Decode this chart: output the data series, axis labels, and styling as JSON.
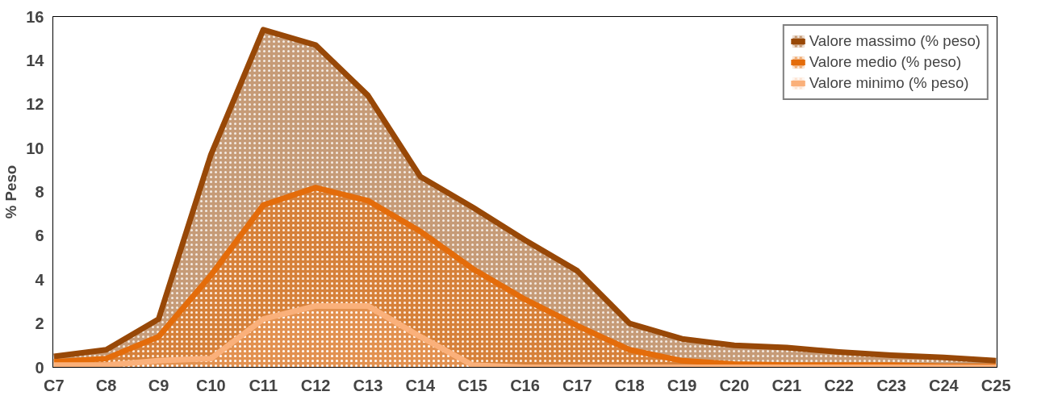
{
  "chart_data": {
    "type": "area",
    "ylabel": "% Peso",
    "categories": [
      "C7",
      "C8",
      "C9",
      "C10",
      "C11",
      "C12",
      "C13",
      "C14",
      "C15",
      "C16",
      "C17",
      "C18",
      "C19",
      "C20",
      "C21",
      "C22",
      "C23",
      "C24",
      "C25"
    ],
    "series": [
      {
        "name": "Valore massimo (% peso)",
        "color": "#984807",
        "values": [
          0.5,
          0.8,
          2.2,
          9.7,
          15.4,
          14.7,
          12.4,
          8.7,
          7.3,
          5.8,
          4.4,
          2.0,
          1.3,
          1.0,
          0.9,
          0.7,
          0.55,
          0.45,
          0.3
        ]
      },
      {
        "name": "Valore medio (% peso)",
        "color": "#e46c0a",
        "values": [
          0.25,
          0.4,
          1.4,
          4.2,
          7.4,
          8.2,
          7.6,
          6.2,
          4.5,
          3.1,
          1.9,
          0.8,
          0.3,
          0.15,
          0.1,
          0.1,
          0.1,
          0.05,
          0.05
        ]
      },
      {
        "name": "Valore minimo (% peso)",
        "color": "#fab07a",
        "values": [
          0.1,
          0.1,
          0.3,
          0.4,
          2.2,
          2.8,
          2.8,
          1.4,
          0.1,
          0,
          0,
          0,
          0,
          0,
          0,
          0,
          0,
          0,
          0
        ]
      }
    ],
    "ylim": [
      0,
      16
    ],
    "yticks": [
      0,
      2,
      4,
      6,
      8,
      10,
      12,
      14,
      16
    ],
    "grid": false,
    "legend": "top right"
  }
}
